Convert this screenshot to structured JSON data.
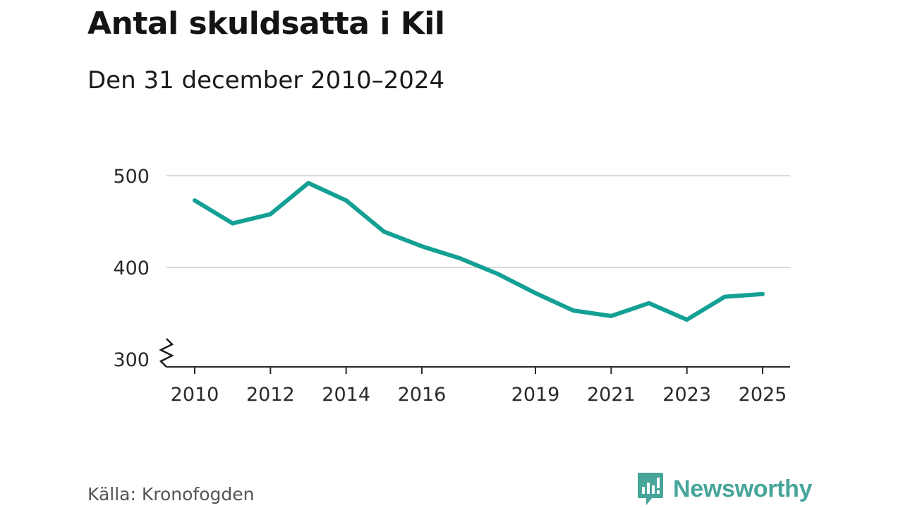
{
  "chart_data": {
    "type": "line",
    "title": "Antal skuldsatta i Kil",
    "subtitle": "Den 31 december 2010–2024",
    "xlabel": "",
    "ylabel": "",
    "x": [
      2010,
      2011,
      2012,
      2013,
      2014,
      2015,
      2016,
      2017,
      2018,
      2019,
      2020,
      2021,
      2022,
      2023,
      2024,
      2025
    ],
    "values": [
      473,
      448,
      458,
      492,
      473,
      439,
      423,
      410,
      393,
      372,
      353,
      347,
      361,
      343,
      368,
      371
    ],
    "xticks": [
      "2010",
      "2012",
      "2014",
      "2016",
      "2019",
      "2021",
      "2023",
      "2025"
    ],
    "yticks": [
      "300",
      "400",
      "500"
    ],
    "ylim": [
      300,
      500
    ],
    "xlim": [
      2010,
      2025
    ],
    "axis_break": true,
    "grid": true,
    "line_color": "#14a094",
    "grid_color": "#d9d9d9"
  },
  "footer": {
    "source": "Källa: Kronofogden",
    "brand": "Newsworthy",
    "brand_icon": "chart-speech-bubble-icon",
    "brand_color": "#47a59a"
  }
}
